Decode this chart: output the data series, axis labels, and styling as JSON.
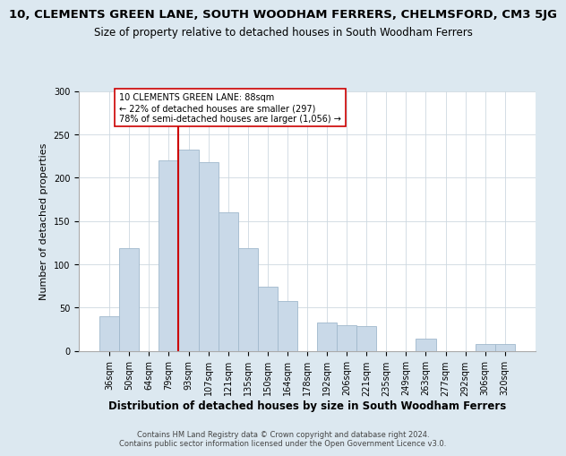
{
  "title": "10, CLEMENTS GREEN LANE, SOUTH WOODHAM FERRERS, CHELMSFORD, CM3 5JG",
  "subtitle": "Size of property relative to detached houses in South Woodham Ferrers",
  "xlabel": "Distribution of detached houses by size in South Woodham Ferrers",
  "ylabel": "Number of detached properties",
  "footnote1": "Contains HM Land Registry data © Crown copyright and database right 2024.",
  "footnote2": "Contains public sector information licensed under the Open Government Licence v3.0.",
  "bar_labels": [
    "36sqm",
    "50sqm",
    "64sqm",
    "79sqm",
    "93sqm",
    "107sqm",
    "121sqm",
    "135sqm",
    "150sqm",
    "164sqm",
    "178sqm",
    "192sqm",
    "206sqm",
    "221sqm",
    "235sqm",
    "249sqm",
    "263sqm",
    "277sqm",
    "292sqm",
    "306sqm",
    "320sqm"
  ],
  "bar_values": [
    40,
    118,
    0,
    220,
    232,
    218,
    160,
    118,
    74,
    57,
    0,
    33,
    30,
    28,
    0,
    0,
    14,
    0,
    0,
    8,
    8
  ],
  "bar_color": "#c9d9e8",
  "bar_edge_color": "#a0b8cc",
  "vline_x_index": 4,
  "vline_color": "#cc0000",
  "annotation_text": "10 CLEMENTS GREEN LANE: 88sqm\n← 22% of detached houses are smaller (297)\n78% of semi-detached houses are larger (1,056) →",
  "annotation_box_color": "#ffffff",
  "annotation_box_edge": "#cc0000",
  "ylim": [
    0,
    300
  ],
  "yticks": [
    0,
    50,
    100,
    150,
    200,
    250,
    300
  ],
  "background_color": "#dce8f0",
  "plot_bg_color": "#ffffff",
  "title_fontsize": 9.5,
  "subtitle_fontsize": 8.5,
  "xlabel_fontsize": 8.5,
  "ylabel_fontsize": 8,
  "tick_fontsize": 7,
  "annotation_fontsize": 7,
  "footnote_fontsize": 6
}
